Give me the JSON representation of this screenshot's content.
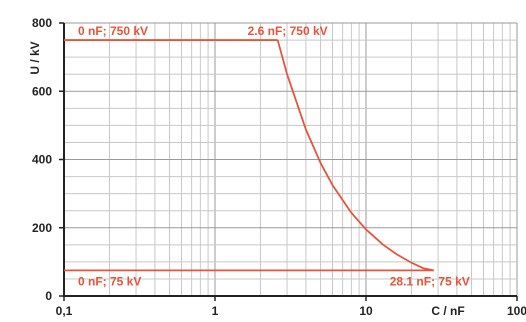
{
  "chart_data": {
    "type": "line",
    "title": "",
    "xlabel": "C / nF",
    "ylabel": "U / kV",
    "x_scale": "log",
    "xlim": [
      0.1,
      100
    ],
    "ylim": [
      0,
      800
    ],
    "x_ticks": [
      0.1,
      1,
      10,
      100
    ],
    "x_tick_labels": [
      "0,1",
      "1",
      "10",
      "100"
    ],
    "y_ticks": [
      0,
      200,
      400,
      600,
      800
    ],
    "y_tick_labels": [
      "0",
      "200",
      "400",
      "600",
      "800"
    ],
    "grid": true,
    "series": [
      {
        "points": [
          [
            0.1,
            750
          ],
          [
            2.6,
            750
          ]
        ]
      },
      {
        "points": [
          [
            2.6,
            750
          ],
          [
            3,
            650
          ],
          [
            4,
            487.5
          ],
          [
            5,
            390
          ],
          [
            6,
            325
          ],
          [
            8,
            243.75
          ],
          [
            10,
            195
          ],
          [
            13,
            150
          ],
          [
            16,
            121.9
          ],
          [
            20,
            97.5
          ],
          [
            24,
            81.25
          ],
          [
            28.1,
            75
          ]
        ]
      },
      {
        "points": [
          [
            0.1,
            75
          ],
          [
            28.1,
            75
          ]
        ]
      }
    ],
    "annotations": [
      {
        "text": "0 nF; 750 kV",
        "x": 0.1,
        "y": 750
      },
      {
        "text": "2.6 nF; 750 kV",
        "x": 2.6,
        "y": 750
      },
      {
        "text": "0 nF; 75 kV",
        "x": 0.1,
        "y": 75
      },
      {
        "text": "28.1 nF; 75 kV",
        "x": 28.1,
        "y": 75
      }
    ],
    "colors": {
      "series": "#e8543a",
      "grid": "#c8c8c8",
      "axis": "#222222"
    }
  }
}
